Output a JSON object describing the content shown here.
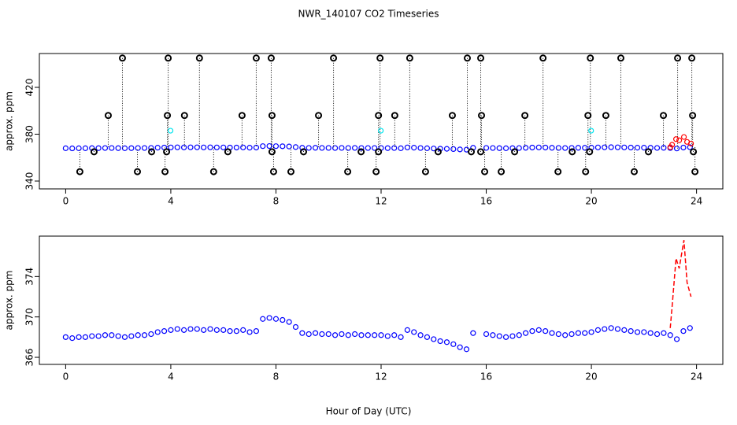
{
  "chart_data": [
    {
      "type": "scatter",
      "title": "NWR_140107  CO2 Timeseries",
      "ylabel": "approx. ppm",
      "xlim": [
        -1,
        25
      ],
      "ylim": [
        333.3,
        448.9
      ],
      "xticks": [
        0,
        4,
        8,
        12,
        16,
        20,
        24
      ],
      "yticks": [
        340,
        380,
        420
      ],
      "series": [
        {
          "mode": "points",
          "color": "#0000ff",
          "x": [
            0,
            0.25,
            0.5,
            0.75,
            1,
            1.25,
            1.5,
            1.75,
            2,
            2.25,
            2.5,
            2.75,
            3,
            3.25,
            3.5,
            3.75,
            4,
            4.25,
            4.5,
            4.75,
            5,
            5.25,
            5.5,
            5.75,
            6,
            6.25,
            6.5,
            6.75,
            7,
            7.25,
            7.5,
            7.75,
            8,
            8.25,
            8.5,
            8.75,
            9,
            9.25,
            9.5,
            9.75,
            10,
            10.25,
            10.5,
            10.75,
            11,
            11.25,
            11.5,
            11.75,
            12,
            12.25,
            12.5,
            12.75,
            13,
            13.25,
            13.5,
            13.75,
            14,
            14.25,
            14.5,
            14.75,
            15,
            15.25,
            15.5,
            15.75,
            16,
            16.25,
            16.5,
            16.75,
            17,
            17.25,
            17.5,
            17.75,
            18,
            18.25,
            18.5,
            18.75,
            19,
            19.25,
            19.5,
            19.75,
            20,
            20.25,
            20.5,
            20.75,
            21,
            21.25,
            21.5,
            21.75,
            22,
            22.25,
            22.5,
            22.75,
            23,
            23.25,
            23.5,
            23.75
          ],
          "values": [
            368.0,
            367.9,
            368.0,
            368.0,
            368.1,
            368.1,
            368.2,
            368.2,
            368.1,
            368.0,
            368.1,
            368.2,
            368.2,
            368.3,
            368.5,
            368.6,
            368.7,
            368.8,
            368.7,
            368.8,
            368.8,
            368.7,
            368.8,
            368.7,
            368.7,
            368.6,
            368.6,
            368.7,
            368.5,
            368.6,
            369.8,
            369.9,
            369.8,
            369.7,
            369.5,
            369.0,
            368.4,
            368.3,
            368.4,
            368.3,
            368.3,
            368.2,
            368.3,
            368.2,
            368.3,
            368.2,
            368.2,
            368.2,
            368.2,
            368.1,
            368.2,
            368.0,
            368.7,
            368.5,
            368.2,
            368.0,
            367.8,
            367.6,
            367.5,
            367.3,
            367.0,
            366.8,
            368.4,
            null,
            368.3,
            368.2,
            368.1,
            368.0,
            368.1,
            368.2,
            368.4,
            368.6,
            368.7,
            368.6,
            368.4,
            368.3,
            368.2,
            368.3,
            368.4,
            368.4,
            368.5,
            368.7,
            368.8,
            368.9,
            368.8,
            368.7,
            368.6,
            368.5,
            368.5,
            368.4,
            368.3,
            368.4,
            368.2,
            367.8,
            368.6,
            368.9
          ]
        },
        {
          "mode": "outliers",
          "color": "#000000",
          "x": [
            2.16,
            3.9,
            5.09,
            7.25,
            7.82,
            10.19,
            11.96,
            13.09,
            15.28,
            15.79,
            18.16,
            19.96,
            21.12,
            23.28,
            23.82,
            1.62,
            3.87,
            4.52,
            6.71,
            7.85,
            9.62,
            11.9,
            12.52,
            14.71,
            15.82,
            17.47,
            19.87,
            20.55,
            22.74,
            23.85,
            0.54,
            2.73,
            3.78,
            5.63,
            7.91,
            8.57,
            10.73,
            11.81,
            13.69,
            15.94,
            16.57,
            18.73,
            19.78,
            21.63,
            23.94,
            1.08,
            3.27,
            3.84,
            6.17,
            7.85,
            9.05,
            11.24,
            11.9,
            14.17,
            15.43,
            15.79,
            17.08,
            19.27,
            19.93,
            22.17,
            23.88
          ],
          "values": [
            445,
            445,
            445,
            445,
            445,
            445,
            445,
            445,
            445,
            445,
            445,
            445,
            445,
            445,
            445,
            396,
            396,
            396,
            396,
            396,
            396,
            396,
            396,
            396,
            396,
            396,
            396,
            396,
            396,
            396,
            348,
            348,
            348,
            348,
            348,
            348,
            348,
            348,
            348,
            348,
            348,
            348,
            348,
            348,
            348,
            365,
            365,
            365,
            365,
            365,
            365,
            365,
            365,
            365,
            365,
            365,
            365,
            365,
            365,
            365,
            365
          ]
        },
        {
          "mode": "points",
          "color": "#00e5ee",
          "x": [
            3.99,
            11.99,
            19.99
          ],
          "values": [
            383,
            383,
            383
          ]
        },
        {
          "mode": "points",
          "color": "#ff0000",
          "x": [
            23.0,
            23.07,
            23.22,
            23.34,
            23.52,
            23.64,
            23.79
          ],
          "values": [
            368.9,
            371.0,
            375.8,
            374.8,
            377.6,
            373.4,
            372.0
          ]
        }
      ]
    },
    {
      "type": "scatter",
      "ylabel": "approx. ppm",
      "xlabel": "Hour of Day (UTC)",
      "xlim": [
        -1,
        25
      ],
      "ylim": [
        365.3,
        378.0
      ],
      "xticks": [
        0,
        4,
        8,
        12,
        16,
        20,
        24
      ],
      "yticks": [
        366,
        370,
        374
      ],
      "series": [
        {
          "mode": "points",
          "color": "#0000ff",
          "x": [
            0,
            0.25,
            0.5,
            0.75,
            1,
            1.25,
            1.5,
            1.75,
            2,
            2.25,
            2.5,
            2.75,
            3,
            3.25,
            3.5,
            3.75,
            4,
            4.25,
            4.5,
            4.75,
            5,
            5.25,
            5.5,
            5.75,
            6,
            6.25,
            6.5,
            6.75,
            7,
            7.25,
            7.5,
            7.75,
            8,
            8.25,
            8.5,
            8.75,
            9,
            9.25,
            9.5,
            9.75,
            10,
            10.25,
            10.5,
            10.75,
            11,
            11.25,
            11.5,
            11.75,
            12,
            12.25,
            12.5,
            12.75,
            13,
            13.25,
            13.5,
            13.75,
            14,
            14.25,
            14.5,
            14.75,
            15,
            15.25,
            15.5,
            15.75,
            16,
            16.25,
            16.5,
            16.75,
            17,
            17.25,
            17.5,
            17.75,
            18,
            18.25,
            18.5,
            18.75,
            19,
            19.25,
            19.5,
            19.75,
            20,
            20.25,
            20.5,
            20.75,
            21,
            21.25,
            21.5,
            21.75,
            22,
            22.25,
            22.5,
            22.75,
            23,
            23.25,
            23.5,
            23.75
          ],
          "values": [
            368.0,
            367.9,
            368.0,
            368.0,
            368.1,
            368.1,
            368.2,
            368.2,
            368.1,
            368.0,
            368.1,
            368.2,
            368.2,
            368.3,
            368.5,
            368.6,
            368.7,
            368.8,
            368.7,
            368.8,
            368.8,
            368.7,
            368.8,
            368.7,
            368.7,
            368.6,
            368.6,
            368.7,
            368.5,
            368.6,
            369.8,
            369.9,
            369.8,
            369.7,
            369.5,
            369.0,
            368.4,
            368.3,
            368.4,
            368.3,
            368.3,
            368.2,
            368.3,
            368.2,
            368.3,
            368.2,
            368.2,
            368.2,
            368.2,
            368.1,
            368.2,
            368.0,
            368.7,
            368.5,
            368.2,
            368.0,
            367.8,
            367.6,
            367.5,
            367.3,
            367.0,
            366.8,
            368.4,
            null,
            368.3,
            368.2,
            368.1,
            368.0,
            368.1,
            368.2,
            368.4,
            368.6,
            368.7,
            368.6,
            368.4,
            368.3,
            368.2,
            368.3,
            368.4,
            368.4,
            368.5,
            368.7,
            368.8,
            368.9,
            368.8,
            368.7,
            368.6,
            368.5,
            368.5,
            368.4,
            368.3,
            368.4,
            368.2,
            367.8,
            368.6,
            368.9
          ]
        },
        {
          "mode": "line",
          "color": "#ff0000",
          "x": [
            23.0,
            23.07,
            23.22,
            23.34,
            23.52,
            23.64,
            23.79
          ],
          "values": [
            368.9,
            371.0,
            375.8,
            374.8,
            377.6,
            373.4,
            372.0
          ]
        }
      ]
    }
  ]
}
